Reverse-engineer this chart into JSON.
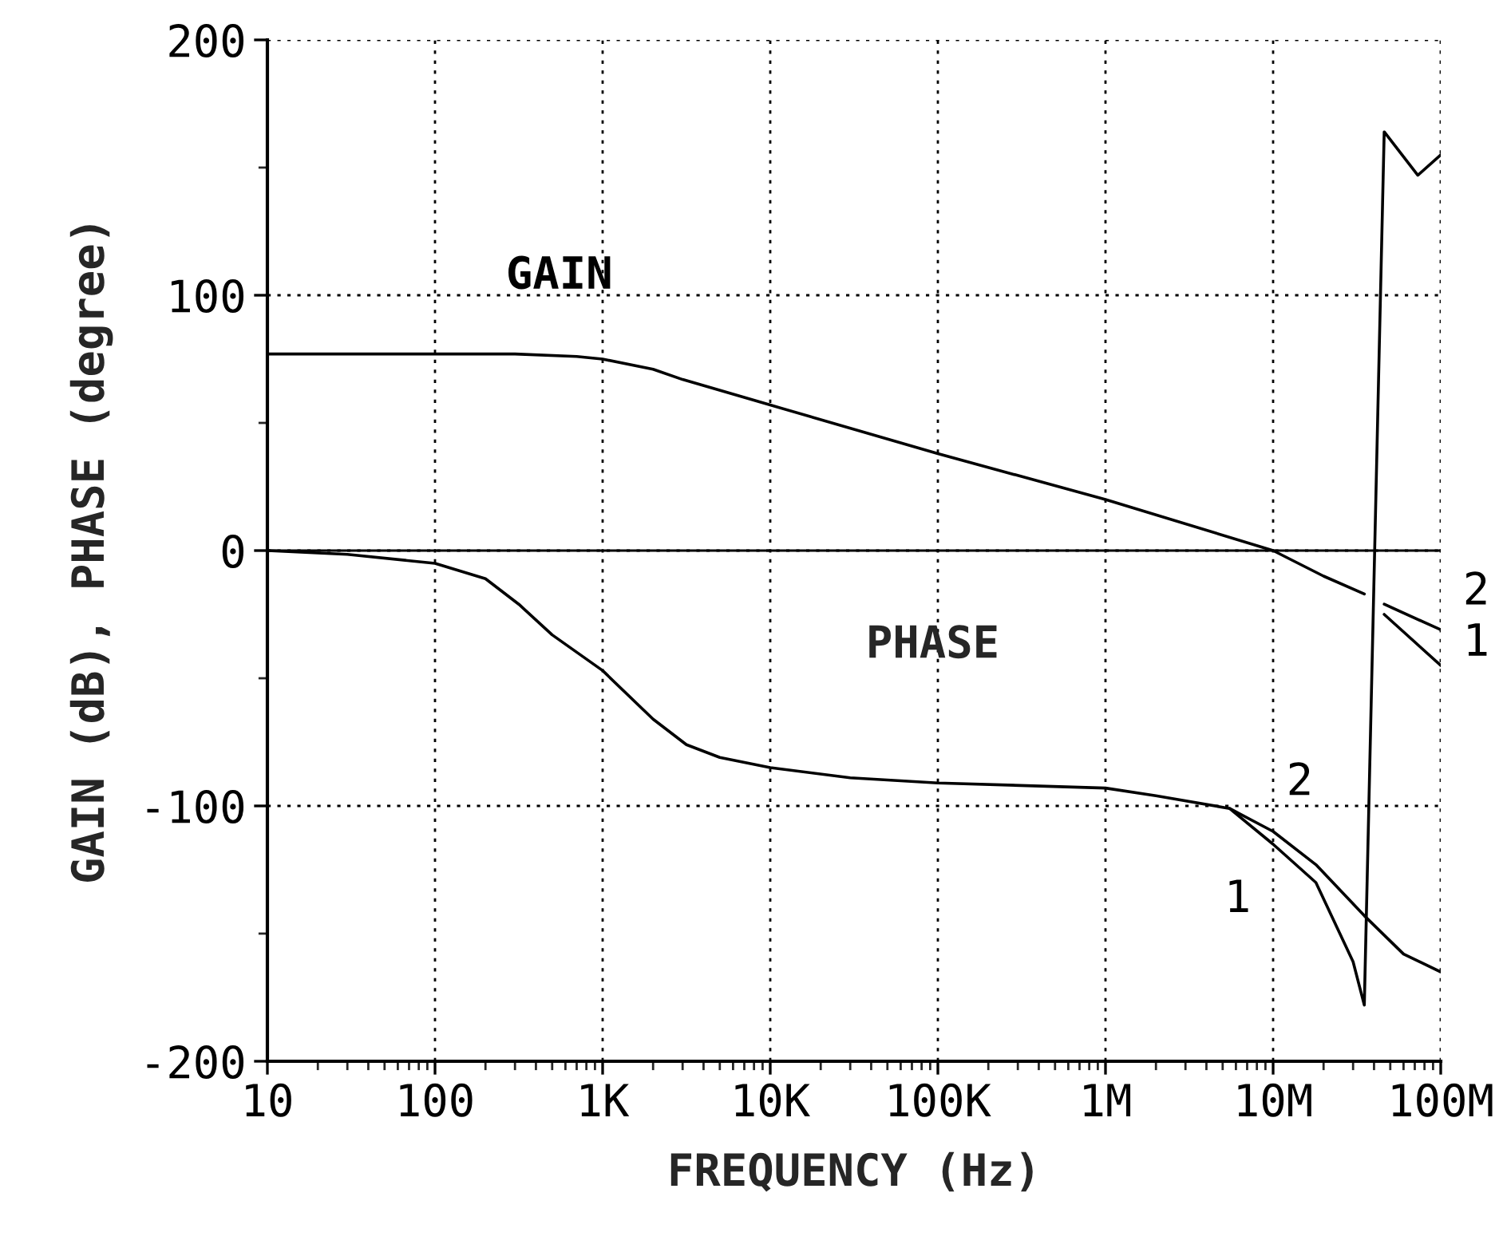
{
  "chart_data": {
    "type": "line",
    "xlabel": "FREQUENCY (Hz)",
    "ylabel": "GAIN (dB), PHASE (degree)",
    "log": "x",
    "grid": true,
    "line_style": "solid",
    "xlim": [
      10,
      100000000
    ],
    "ylim": [
      -200,
      200
    ],
    "xticks": [
      10,
      100,
      {
        "value": 1000,
        "label": "1K"
      },
      {
        "value": 10000,
        "label": "10K"
      },
      {
        "value": 100000,
        "label": "100K"
      },
      {
        "value": 1000000,
        "label": "1M"
      },
      {
        "value": 10000000,
        "label": "10M"
      },
      {
        "value": 100000000,
        "label": "100M"
      }
    ],
    "yticks": [
      -200,
      {
        "value": -150,
        "label": null
      },
      -100,
      {
        "value": -50,
        "label": null
      },
      0,
      {
        "value": 50,
        "label": null
      },
      100,
      {
        "value": 150,
        "label": null
      },
      200
    ],
    "ref_lines": [
      {
        "axis": "y",
        "value": 0,
        "color": "#000000"
      }
    ],
    "series": [
      {
        "name": "GAIN",
        "color": "#000000",
        "x": [
          10,
          300,
          700,
          1000,
          2000,
          3000,
          10000,
          100000,
          1000000,
          10000000,
          20000000,
          35000000
        ],
        "values": [
          77,
          77,
          76,
          75,
          71,
          67,
          57,
          38,
          20,
          0,
          -10,
          -17
        ]
      },
      {
        "name": "2",
        "color": "#000000",
        "x": [
          46000000,
          100000000
        ],
        "values": [
          -21,
          -31
        ]
      },
      {
        "name": "1",
        "color": "#000000",
        "x": [
          46000000,
          100000000
        ],
        "values": [
          -25,
          -45
        ]
      },
      {
        "name": "1",
        "color": "#000000",
        "x": [
          10,
          30,
          100,
          200,
          316,
          500,
          1000,
          2000,
          3162,
          5000,
          10000,
          30000,
          100000,
          1000000,
          2000000,
          5500000,
          10000000,
          18000000,
          30000000,
          35000000,
          46000000,
          73000000,
          100000000
        ],
        "values": [
          0,
          -1.5,
          -5,
          -11,
          -21,
          -33,
          -47,
          -66,
          -76,
          -81,
          -85,
          -89,
          -91,
          -93,
          -96,
          -101,
          -115,
          -130,
          -161,
          -178,
          164,
          147,
          155
        ]
      },
      {
        "name": "2",
        "color": "#000000",
        "x": [
          5500000,
          10000000,
          18000000,
          35000000,
          60000000,
          100000000
        ],
        "values": [
          -101,
          -110,
          -123,
          -143,
          -158,
          -165
        ]
      }
    ],
    "annotations": [
      "PHASE"
    ]
  }
}
